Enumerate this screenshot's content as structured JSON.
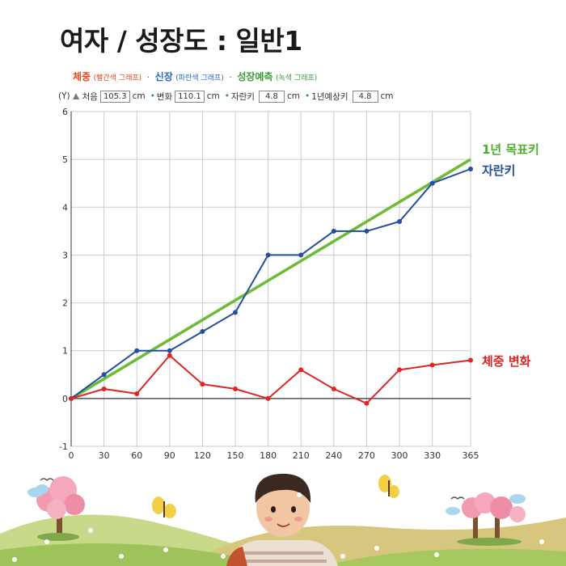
{
  "page": {
    "title": "여자 / 성장도 : 일반1"
  },
  "legend": {
    "weight_key": "체중",
    "weight_sub": "(빨간색 그래프)",
    "height_key": "신장",
    "height_sub": "(파란색 그래프)",
    "predict_key": "성장예측",
    "predict_sub": "(녹색 그래프)",
    "separator": "·"
  },
  "params": {
    "unit_y": "(Y)",
    "initial_label": "처음",
    "initial_value": "105.3",
    "cm1": "cm",
    "change_label": "변화",
    "change_value": "110.1",
    "cm2": "cm",
    "growth_label": "자란키",
    "growth_value": "4.8",
    "cm3": "cm",
    "annual_label": "1년예상키",
    "annual_value": "4.8",
    "cm4": "cm"
  },
  "colors": {
    "weight": "#e02424",
    "height": "#234f9c",
    "target": "#6dbb35",
    "grid": "#cccccc",
    "axis": "#333333"
  },
  "chart_data": {
    "type": "line",
    "x": [
      0,
      30,
      60,
      90,
      120,
      150,
      180,
      210,
      240,
      270,
      300,
      330,
      365
    ],
    "xlim": [
      0,
      365
    ],
    "ylim": [
      -1,
      6
    ],
    "x_ticks": [
      "0",
      "30",
      "60",
      "90",
      "120",
      "150",
      "180",
      "210",
      "240",
      "270",
      "300",
      "330",
      "365"
    ],
    "y_ticks": [
      "-1",
      "0",
      "1",
      "2",
      "3",
      "4",
      "5",
      "6"
    ],
    "grid": true,
    "series": [
      {
        "name": "1년 목표키",
        "color": "#6dbb35",
        "x": [
          0,
          365
        ],
        "values": [
          0,
          5.0
        ],
        "markers": false
      },
      {
        "name": "자란키",
        "color": "#234f9c",
        "values": [
          0,
          0.5,
          1.0,
          1.0,
          1.4,
          1.8,
          3.0,
          3.0,
          3.5,
          3.5,
          3.7,
          4.5,
          4.8
        ],
        "markers": true
      },
      {
        "name": "체중 변화",
        "color": "#e02424",
        "values": [
          0,
          0.2,
          0.1,
          0.9,
          0.3,
          0.2,
          0.0,
          0.6,
          0.2,
          -0.1,
          0.6,
          0.7,
          0.8
        ],
        "markers": true
      }
    ]
  },
  "scene": {
    "icons": [
      "blossom-tree-icon",
      "butterfly-icon",
      "child-character-icon",
      "bird-icon",
      "cloud-icon"
    ]
  }
}
